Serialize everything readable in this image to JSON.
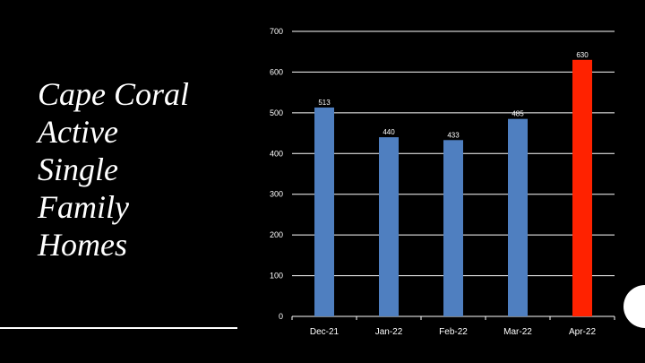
{
  "slide": {
    "title_lines": [
      "Cape Coral",
      "Active",
      "Single",
      "Family",
      "Homes"
    ]
  },
  "chart_data": {
    "type": "bar",
    "title": "Cape Coral Active Single Family Homes",
    "categories": [
      "Dec-21",
      "Jan-22",
      "Feb-22",
      "Mar-22",
      "Apr-22"
    ],
    "values": [
      513,
      440,
      433,
      485,
      630
    ],
    "data_labels": [
      "513",
      "440",
      "433",
      "485",
      "630"
    ],
    "bar_colors": [
      "#4f7fc0",
      "#4f7fc0",
      "#4f7fc0",
      "#4f7fc0",
      "#ff2200"
    ],
    "ylim": [
      0,
      700
    ],
    "yticks": [
      0,
      100,
      200,
      300,
      400,
      500,
      600,
      700
    ],
    "grid": true,
    "legend": "none"
  },
  "colors": {
    "background": "#000000",
    "text": "#ffffff",
    "series_bar": "#4f7fc0",
    "highlight_bar": "#ff2200"
  }
}
